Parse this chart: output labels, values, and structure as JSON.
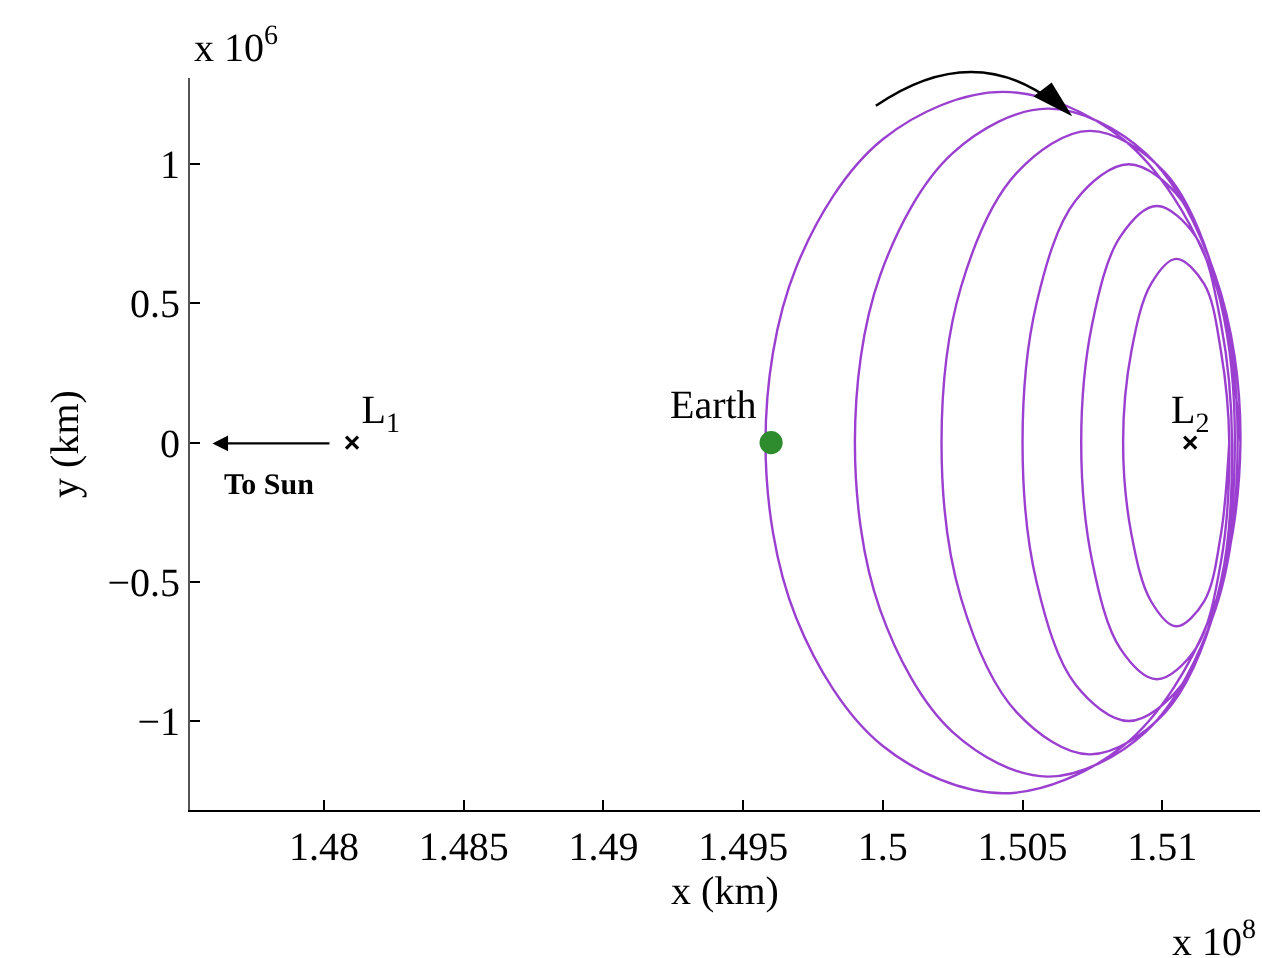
{
  "chart_data": {
    "type": "line",
    "xlabel": "x (km)",
    "ylabel": "y (km)",
    "annotations": [
      "x 10$^{6}$",
      "x 10$^{8}$",
      "To Sun"
    ],
    "xlim": [
      1.4752,
      1.5135
    ],
    "xticks": [
      1.48,
      1.485,
      1.49,
      1.495,
      1.5,
      1.505,
      1.51
    ],
    "ylim": [
      -1.32,
      1.31
    ],
    "yticks": [
      -1,
      -0.5,
      0,
      0.5,
      1
    ],
    "legend": false,
    "series": [
      {
        "color": "#9b3fd0",
        "marker": "none",
        "line_style": "solid",
        "x": [
          1.5128,
          1.5117,
          1.5086,
          1.5043,
          1.5,
          1.4969,
          1.4958,
          1.4969,
          1.5,
          1.5043,
          1.5086,
          1.5117,
          1.5128,
          1.5119,
          1.5094,
          1.5059,
          1.5025,
          1.4999,
          1.499,
          1.4999,
          1.5025,
          1.5059,
          1.5094,
          1.5119,
          1.5127,
          1.512,
          1.5101,
          1.5074,
          1.5048,
          1.5028,
          1.5021,
          1.5028,
          1.5048,
          1.5074,
          1.5101,
          1.512,
          1.5126,
          1.5121,
          1.5107,
          1.5088,
          1.5069,
          1.5055,
          1.505,
          1.5055,
          1.5069,
          1.5088,
          1.5107,
          1.5121,
          1.5125,
          1.5121,
          1.5112,
          1.5098,
          1.5085,
          1.5075,
          1.5071,
          1.5075,
          1.5085,
          1.5098,
          1.5112,
          1.5121,
          1.5124,
          1.5121,
          1.5115,
          1.5105,
          1.5096,
          1.5089,
          1.5086,
          1.5089,
          1.5096,
          1.5105,
          1.5115,
          1.5121,
          1.5124
        ],
        "values": [
          0,
          0.63,
          1.09,
          1.26,
          1.09,
          0.63,
          0,
          -0.63,
          -1.09,
          -1.26,
          -1.09,
          -0.63,
          0,
          0.6,
          1.04,
          1.2,
          1.04,
          0.6,
          0,
          -0.6,
          -1.04,
          -1.2,
          -1.04,
          -0.6,
          0,
          0.56,
          0.97,
          1.12,
          0.97,
          0.56,
          0,
          -0.56,
          -0.97,
          -1.12,
          -0.97,
          -0.56,
          0,
          0.5,
          0.87,
          1.0,
          0.87,
          0.5,
          0,
          -0.5,
          -0.87,
          -1.0,
          -0.87,
          -0.5,
          0,
          0.43,
          0.74,
          0.85,
          0.74,
          0.43,
          0,
          -0.43,
          -0.74,
          -0.85,
          -0.74,
          -0.43,
          0,
          0.33,
          0.57,
          0.66,
          0.57,
          0.33,
          0,
          -0.33,
          -0.57,
          -0.66,
          -0.57,
          -0.33,
          0
        ]
      },
      {
        "type": "scatter",
        "name": "Earth",
        "color": "#2e8b2e",
        "marker": "circle",
        "x": [
          1.496
        ],
        "values": [
          0
        ]
      },
      {
        "type": "scatter",
        "name": "L$_{1}$",
        "color": "#000000",
        "marker": "cross",
        "x": [
          1.481
        ],
        "values": [
          0
        ]
      },
      {
        "type": "scatter",
        "name": "L$_{2}$",
        "color": "#000000",
        "marker": "cross",
        "x": [
          1.511
        ],
        "values": [
          0
        ]
      }
    ]
  }
}
